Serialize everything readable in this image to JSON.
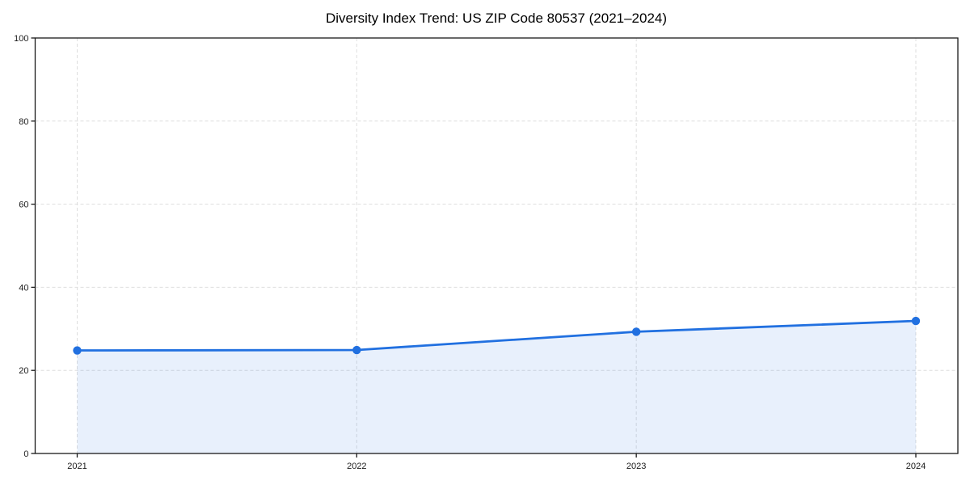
{
  "chart_data": {
    "type": "area",
    "title": "Diversity Index Trend: US ZIP Code 80537 (2021–2024)",
    "x": [
      2021,
      2022,
      2023,
      2024
    ],
    "xtick_labels": [
      "2021",
      "2022",
      "2023",
      "2024"
    ],
    "series": [
      {
        "name": "Diversity Index",
        "values": [
          24.8,
          24.9,
          29.3,
          31.9
        ]
      }
    ],
    "xlabel": "",
    "ylabel": "",
    "ylim": [
      0,
      100
    ],
    "yticks": [
      0,
      20,
      40,
      60,
      80,
      100
    ],
    "grid": true,
    "grid_style": "dashed",
    "legend": "none",
    "marker": "circle",
    "colors": {
      "line": "#2170e0",
      "marker": "#2170e0",
      "fill": "#2170e0",
      "fill_opacity": 0.1,
      "grid": "#dedede",
      "spine": "#1a1a1a",
      "tick": "#1a1a1a",
      "tick_label": "#1a1a1a",
      "title": "#000000",
      "background": "#ffffff"
    }
  }
}
